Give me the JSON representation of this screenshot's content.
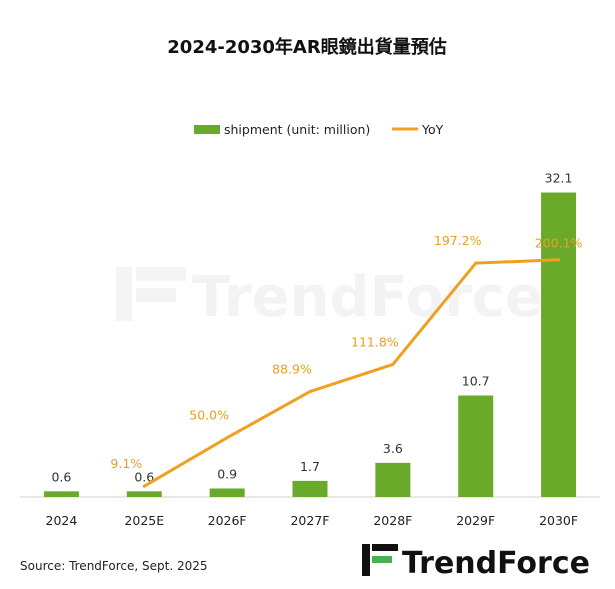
{
  "chart_data": {
    "type": "bar+line",
    "title": "2024-2030年AR眼鏡出貨量預估",
    "categories": [
      "2024",
      "2025E",
      "2026F",
      "2027F",
      "2028F",
      "2029F",
      "2030F"
    ],
    "series": [
      {
        "name": "shipment (unit: million)",
        "type": "bar",
        "color": "#6aaa2a",
        "values": [
          0.6,
          0.6,
          0.9,
          1.7,
          3.6,
          10.7,
          32.1
        ],
        "labels": [
          "0.6",
          "0.6",
          "0.9",
          "1.7",
          "3.6",
          "10.7",
          "32.1"
        ]
      },
      {
        "name": "YoY",
        "type": "line",
        "color": "#f0a020",
        "values": [
          null,
          9.1,
          50.0,
          88.9,
          111.8,
          197.2,
          200.1
        ],
        "labels": [
          "",
          "9.1%",
          "50.0%",
          "88.9%",
          "111.8%",
          "197.2%",
          "200.1%"
        ]
      }
    ],
    "ylim_bar": [
      0,
      35
    ],
    "ylim_line": [
      0,
      280
    ],
    "legend_position": "top-center",
    "grid": false
  },
  "source": "Source: TrendForce, Sept. 2025",
  "watermark": "TrendForce",
  "logo_text": "TrendForce"
}
